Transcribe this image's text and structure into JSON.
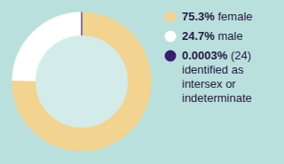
{
  "chart_data": {
    "type": "donut",
    "categories": [
      "female",
      "male",
      "(24) identified as intersex or indeterminate"
    ],
    "values": [
      75.3,
      24.7,
      0.0003
    ],
    "value_labels": [
      "75.3%",
      "24.7%",
      "0.0003%"
    ],
    "colors": [
      "#f2d38f",
      "#ffffff",
      "#3a1d6e"
    ],
    "legend": "right"
  }
}
